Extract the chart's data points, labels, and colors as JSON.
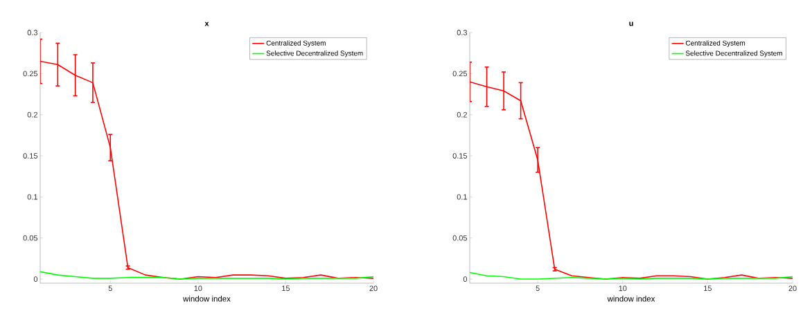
{
  "chart_data": [
    {
      "type": "line",
      "title": "x",
      "xlabel": "window index",
      "x": [
        1,
        2,
        3,
        4,
        5,
        6,
        7,
        8,
        9,
        10,
        11,
        12,
        13,
        14,
        15,
        16,
        17,
        18,
        19,
        20
      ],
      "xlim": [
        1,
        20
      ],
      "ylim": [
        -0.005,
        0.3
      ],
      "xticks": [
        5,
        10,
        15,
        20
      ],
      "yticks": [
        0,
        0.05,
        0.1,
        0.15,
        0.2,
        0.25,
        0.3
      ],
      "legend": "top right",
      "marker": "none",
      "line_style": "solid",
      "grid": false,
      "series": [
        {
          "name": "Centralized System",
          "color": "#ff0000",
          "values": [
            0.265,
            0.261,
            0.248,
            0.239,
            0.16,
            0.014,
            0.005,
            0.002,
            0,
            0.003,
            0.002,
            0.005,
            0.005,
            0.004,
            0.001,
            0.002,
            0.005,
            0.001,
            0.002,
            0.001
          ],
          "errors": [
            0.027,
            0.026,
            0.025,
            0.024,
            0.016,
            0.002,
            null,
            null,
            null,
            null,
            null,
            null,
            null,
            null,
            null,
            null,
            null,
            null,
            null,
            null
          ]
        },
        {
          "name": "Selective Decentralized System",
          "color": "#00ff00",
          "values": [
            0.009,
            0.005,
            0.003,
            0.001,
            0.001,
            0.002,
            0.002,
            0.002,
            0,
            0.001,
            0.001,
            0.001,
            0.001,
            0.001,
            0,
            0.001,
            0.001,
            0.001,
            0.001,
            0.003
          ]
        }
      ]
    },
    {
      "type": "line",
      "title": "u",
      "xlabel": "window index",
      "x": [
        1,
        2,
        3,
        4,
        5,
        6,
        7,
        8,
        9,
        10,
        11,
        12,
        13,
        14,
        15,
        16,
        17,
        18,
        19,
        20
      ],
      "xlim": [
        1,
        20
      ],
      "ylim": [
        -0.005,
        0.3
      ],
      "xticks": [
        5,
        10,
        15,
        20
      ],
      "yticks": [
        0,
        0.05,
        0.1,
        0.15,
        0.2,
        0.25,
        0.3
      ],
      "legend": "top right",
      "marker": "none",
      "line_style": "solid",
      "grid": false,
      "series": [
        {
          "name": "Centralized System",
          "color": "#ff0000",
          "values": [
            0.24,
            0.234,
            0.229,
            0.217,
            0.145,
            0.012,
            0.004,
            0.002,
            0,
            0.002,
            0.001,
            0.004,
            0.004,
            0.003,
            0,
            0.002,
            0.005,
            0.001,
            0.002,
            0.001
          ],
          "errors": [
            0.024,
            0.024,
            0.023,
            0.022,
            0.015,
            0.002,
            null,
            null,
            null,
            null,
            null,
            null,
            null,
            null,
            null,
            null,
            null,
            null,
            null,
            null
          ]
        },
        {
          "name": "Selective Decentralized System",
          "color": "#00ff00",
          "values": [
            0.008,
            0.004,
            0.003,
            0,
            0,
            0.001,
            0.002,
            0.001,
            0,
            0.001,
            0,
            0.001,
            0.001,
            0.001,
            0,
            0.001,
            0.001,
            0.001,
            0.001,
            0.003
          ]
        }
      ]
    }
  ]
}
